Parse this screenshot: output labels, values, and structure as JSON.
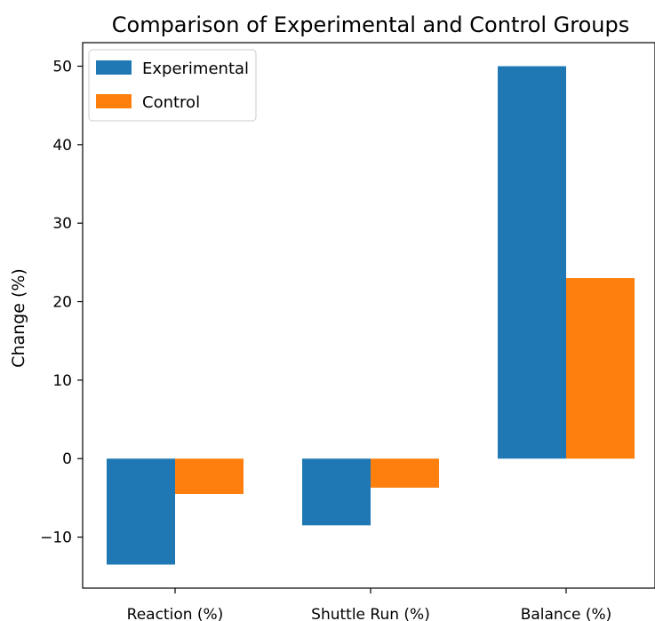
{
  "chart_data": {
    "type": "bar",
    "title": "Comparison of Experimental and Control Groups",
    "xlabel": "",
    "ylabel": "Change (%)",
    "categories": [
      "Reaction (%)",
      "Shuttle Run (%)",
      "Balance (%)"
    ],
    "series": [
      {
        "name": "Experimental",
        "values": [
          -13.5,
          -8.5,
          50
        ],
        "color": "#1f77b4"
      },
      {
        "name": "Control",
        "values": [
          -4.5,
          -3.7,
          23
        ],
        "color": "#ff7f0e"
      }
    ],
    "ylim": [
      -16.5,
      53
    ],
    "yticks": [
      -10,
      0,
      10,
      20,
      30,
      40,
      50
    ],
    "ytick_labels": [
      "−10",
      "0",
      "10",
      "20",
      "30",
      "40",
      "50"
    ],
    "grid": false,
    "legend_position": "top-left"
  }
}
